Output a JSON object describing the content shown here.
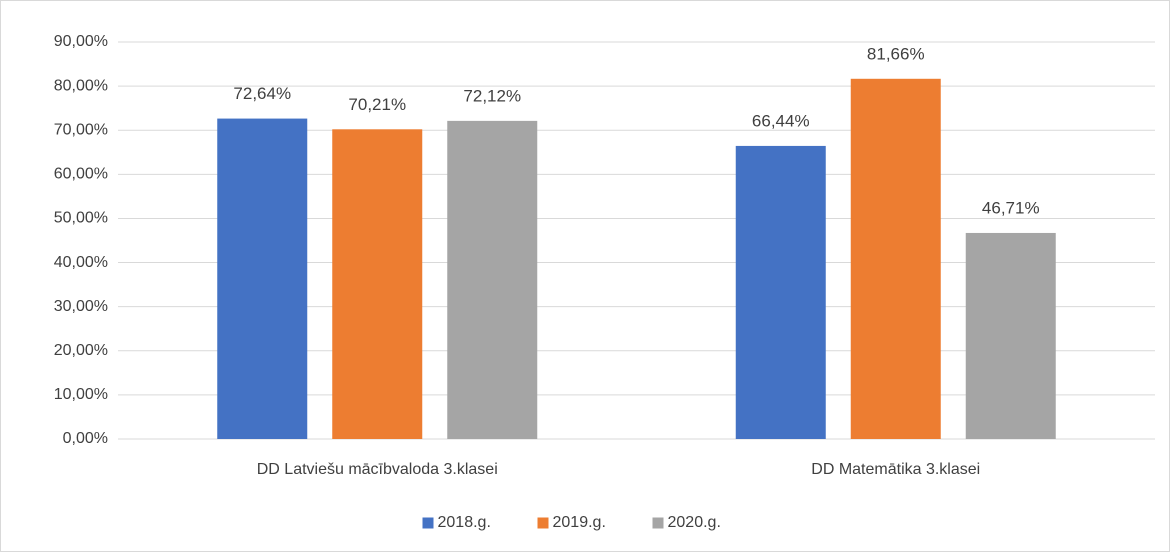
{
  "chart_data": {
    "type": "bar",
    "categories": [
      "DD Latviešu mācībvaloda 3.klasei",
      "DD Matemātika 3.klasei"
    ],
    "series": [
      {
        "name": "2018.g.",
        "color": "#4472c4",
        "values": [
          72.64,
          66.44
        ],
        "value_labels": [
          "72,64%",
          "66,44%"
        ]
      },
      {
        "name": "2019.g.",
        "color": "#ed7d31",
        "values": [
          70.21,
          81.66
        ],
        "value_labels": [
          "70,21%",
          "81,66%"
        ]
      },
      {
        "name": "2020.g.",
        "color": "#a5a5a5",
        "values": [
          72.12,
          46.71
        ],
        "value_labels": [
          "72,12%",
          "46,71%"
        ]
      }
    ],
    "ylim": [
      0,
      90
    ],
    "yticks": [
      {
        "value": 0,
        "label": "0,00%"
      },
      {
        "value": 10,
        "label": "10,00%"
      },
      {
        "value": 20,
        "label": "20,00%"
      },
      {
        "value": 30,
        "label": "30,00%"
      },
      {
        "value": 40,
        "label": "40,00%"
      },
      {
        "value": 50,
        "label": "50,00%"
      },
      {
        "value": 60,
        "label": "60,00%"
      },
      {
        "value": 70,
        "label": "70,00%"
      },
      {
        "value": 80,
        "label": "80,00%"
      },
      {
        "value": 90,
        "label": "90,00%"
      }
    ],
    "grid": true,
    "legend": "bottom"
  }
}
